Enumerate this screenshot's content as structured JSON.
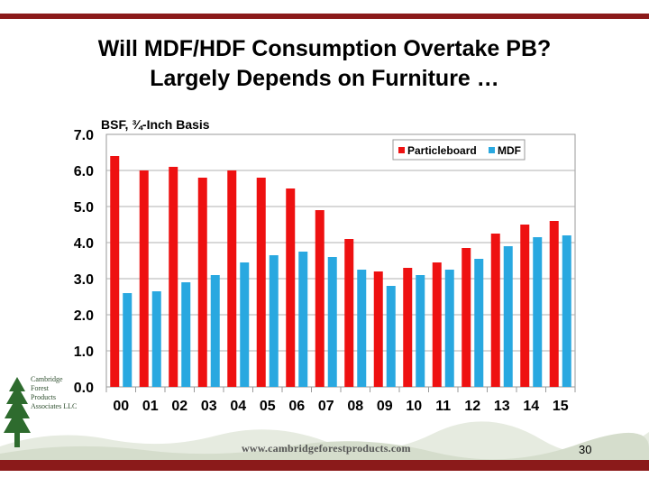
{
  "slide": {
    "title_line1": "Will MDF/HDF Consumption Overtake PB?",
    "title_line2": "Largely Depends on Furniture …",
    "footer_url": "www.cambridgeforestproducts.com",
    "page_number": "30",
    "logo_text": [
      "Cambridge",
      "Forest",
      "Products",
      "Associates LLC"
    ]
  },
  "colors": {
    "bar_red": "#ee1111",
    "bar_blue": "#29a8e0",
    "frame": "#8b1a1a",
    "grid": "#b0b0b0"
  },
  "chart_data": {
    "type": "bar",
    "title": "Will MDF/HDF Consumption Overtake PB?",
    "unit_label": "BSF, ¾-Inch Basis",
    "categories": [
      "00",
      "01",
      "02",
      "03",
      "04",
      "05",
      "06",
      "07",
      "08",
      "09",
      "10",
      "11",
      "12",
      "13",
      "14",
      "15"
    ],
    "series": [
      {
        "name": "Particleboard",
        "color": "#ee1111",
        "values": [
          6.4,
          6.0,
          6.1,
          5.8,
          6.0,
          5.8,
          5.5,
          4.9,
          4.1,
          3.2,
          3.3,
          3.45,
          3.85,
          4.25,
          4.5,
          4.6
        ]
      },
      {
        "name": "MDF",
        "color": "#29a8e0",
        "values": [
          2.6,
          2.65,
          2.9,
          3.1,
          3.45,
          3.65,
          3.75,
          3.6,
          3.25,
          2.8,
          3.1,
          3.25,
          3.55,
          3.9,
          4.15,
          4.2
        ]
      }
    ],
    "yticks": [
      "0.0",
      "1.0",
      "2.0",
      "3.0",
      "4.0",
      "5.0",
      "6.0",
      "7.0"
    ],
    "ylim": [
      0,
      7
    ],
    "grid": true,
    "legend_position": "top-right"
  }
}
